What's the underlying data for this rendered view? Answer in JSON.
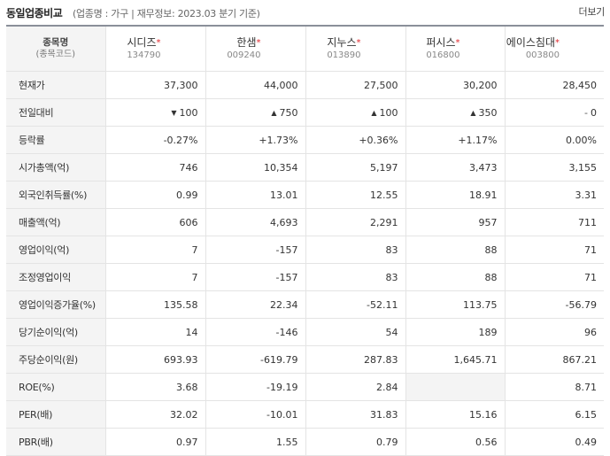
{
  "header": {
    "title": "동일업종비교",
    "subtitle": "(업종명 : 가구 | 재무정보: 2023.03 분기 기준)",
    "more_label": "더보기"
  },
  "table": {
    "corner_label": "종목명",
    "corner_sub": "(종목코드)",
    "star": "*",
    "companies": [
      {
        "name": "시디즈",
        "code": "134790"
      },
      {
        "name": "한샘",
        "code": "009240"
      },
      {
        "name": "지누스",
        "code": "013890"
      },
      {
        "name": "퍼시스",
        "code": "016800"
      },
      {
        "name": "에이스침대",
        "code": "003800"
      }
    ],
    "rows": [
      {
        "label": "현재가",
        "cells": [
          {
            "text": "37,300"
          },
          {
            "text": "44,000"
          },
          {
            "text": "27,500"
          },
          {
            "text": "30,200"
          },
          {
            "text": "28,450"
          }
        ]
      },
      {
        "label": "전일대비",
        "cells": [
          {
            "text": "100",
            "dir": "down",
            "arrow": "▼"
          },
          {
            "text": "750",
            "dir": "up",
            "arrow": "▲"
          },
          {
            "text": "100",
            "dir": "up",
            "arrow": "▲"
          },
          {
            "text": "350",
            "dir": "up",
            "arrow": "▲"
          },
          {
            "text": "0",
            "dir": "flat",
            "arrow": "-"
          }
        ]
      },
      {
        "label": "등락률",
        "cells": [
          {
            "text": "-0.27%",
            "dir": "down"
          },
          {
            "text": "+1.73%",
            "dir": "up"
          },
          {
            "text": "+0.36%",
            "dir": "up"
          },
          {
            "text": "+1.17%",
            "dir": "up"
          },
          {
            "text": "0.00%"
          }
        ]
      },
      {
        "label": "시가총액(억)",
        "cells": [
          {
            "text": "746"
          },
          {
            "text": "10,354"
          },
          {
            "text": "5,197"
          },
          {
            "text": "3,473"
          },
          {
            "text": "3,155"
          }
        ]
      },
      {
        "label": "외국인취득률(%)",
        "cells": [
          {
            "text": "0.99"
          },
          {
            "text": "13.01"
          },
          {
            "text": "12.55"
          },
          {
            "text": "18.91"
          },
          {
            "text": "3.31"
          }
        ]
      },
      {
        "label": "매출액(억)",
        "cells": [
          {
            "text": "606"
          },
          {
            "text": "4,693"
          },
          {
            "text": "2,291"
          },
          {
            "text": "957"
          },
          {
            "text": "711"
          }
        ]
      },
      {
        "label": "영업이익(억)",
        "cells": [
          {
            "text": "7"
          },
          {
            "text": "-157"
          },
          {
            "text": "83"
          },
          {
            "text": "88"
          },
          {
            "text": "71"
          }
        ]
      },
      {
        "label": "조정영업이익",
        "cells": [
          {
            "text": "7"
          },
          {
            "text": "-157"
          },
          {
            "text": "83"
          },
          {
            "text": "88"
          },
          {
            "text": "71"
          }
        ]
      },
      {
        "label": "영업이익증가율(%)",
        "cells": [
          {
            "text": "135.58"
          },
          {
            "text": "22.34"
          },
          {
            "text": "-52.11"
          },
          {
            "text": "113.75"
          },
          {
            "text": "-56.79"
          }
        ]
      },
      {
        "label": "당기순이익(억)",
        "cells": [
          {
            "text": "14"
          },
          {
            "text": "-146"
          },
          {
            "text": "54"
          },
          {
            "text": "189"
          },
          {
            "text": "96"
          }
        ]
      },
      {
        "label": "주당순이익(원)",
        "cells": [
          {
            "text": "693.93"
          },
          {
            "text": "-619.79"
          },
          {
            "text": "287.83"
          },
          {
            "text": "1,645.71"
          },
          {
            "text": "867.21"
          }
        ]
      },
      {
        "label": "ROE(%)",
        "cells": [
          {
            "text": "3.68"
          },
          {
            "text": "-19.19"
          },
          {
            "text": "2.84"
          },
          {
            "text": "",
            "empty": true
          },
          {
            "text": "8.71"
          }
        ]
      },
      {
        "label": "PER(배)",
        "cells": [
          {
            "text": "32.02"
          },
          {
            "text": "-10.01"
          },
          {
            "text": "31.83"
          },
          {
            "text": "15.16"
          },
          {
            "text": "6.15"
          }
        ]
      },
      {
        "label": "PBR(배)",
        "cells": [
          {
            "text": "0.97"
          },
          {
            "text": "1.55"
          },
          {
            "text": "0.79"
          },
          {
            "text": "0.56"
          },
          {
            "text": "0.49"
          }
        ]
      }
    ]
  },
  "colors": {
    "up": "#e0272d",
    "down": "#1a5bc4",
    "header_bg": "#f4f4f4"
  }
}
